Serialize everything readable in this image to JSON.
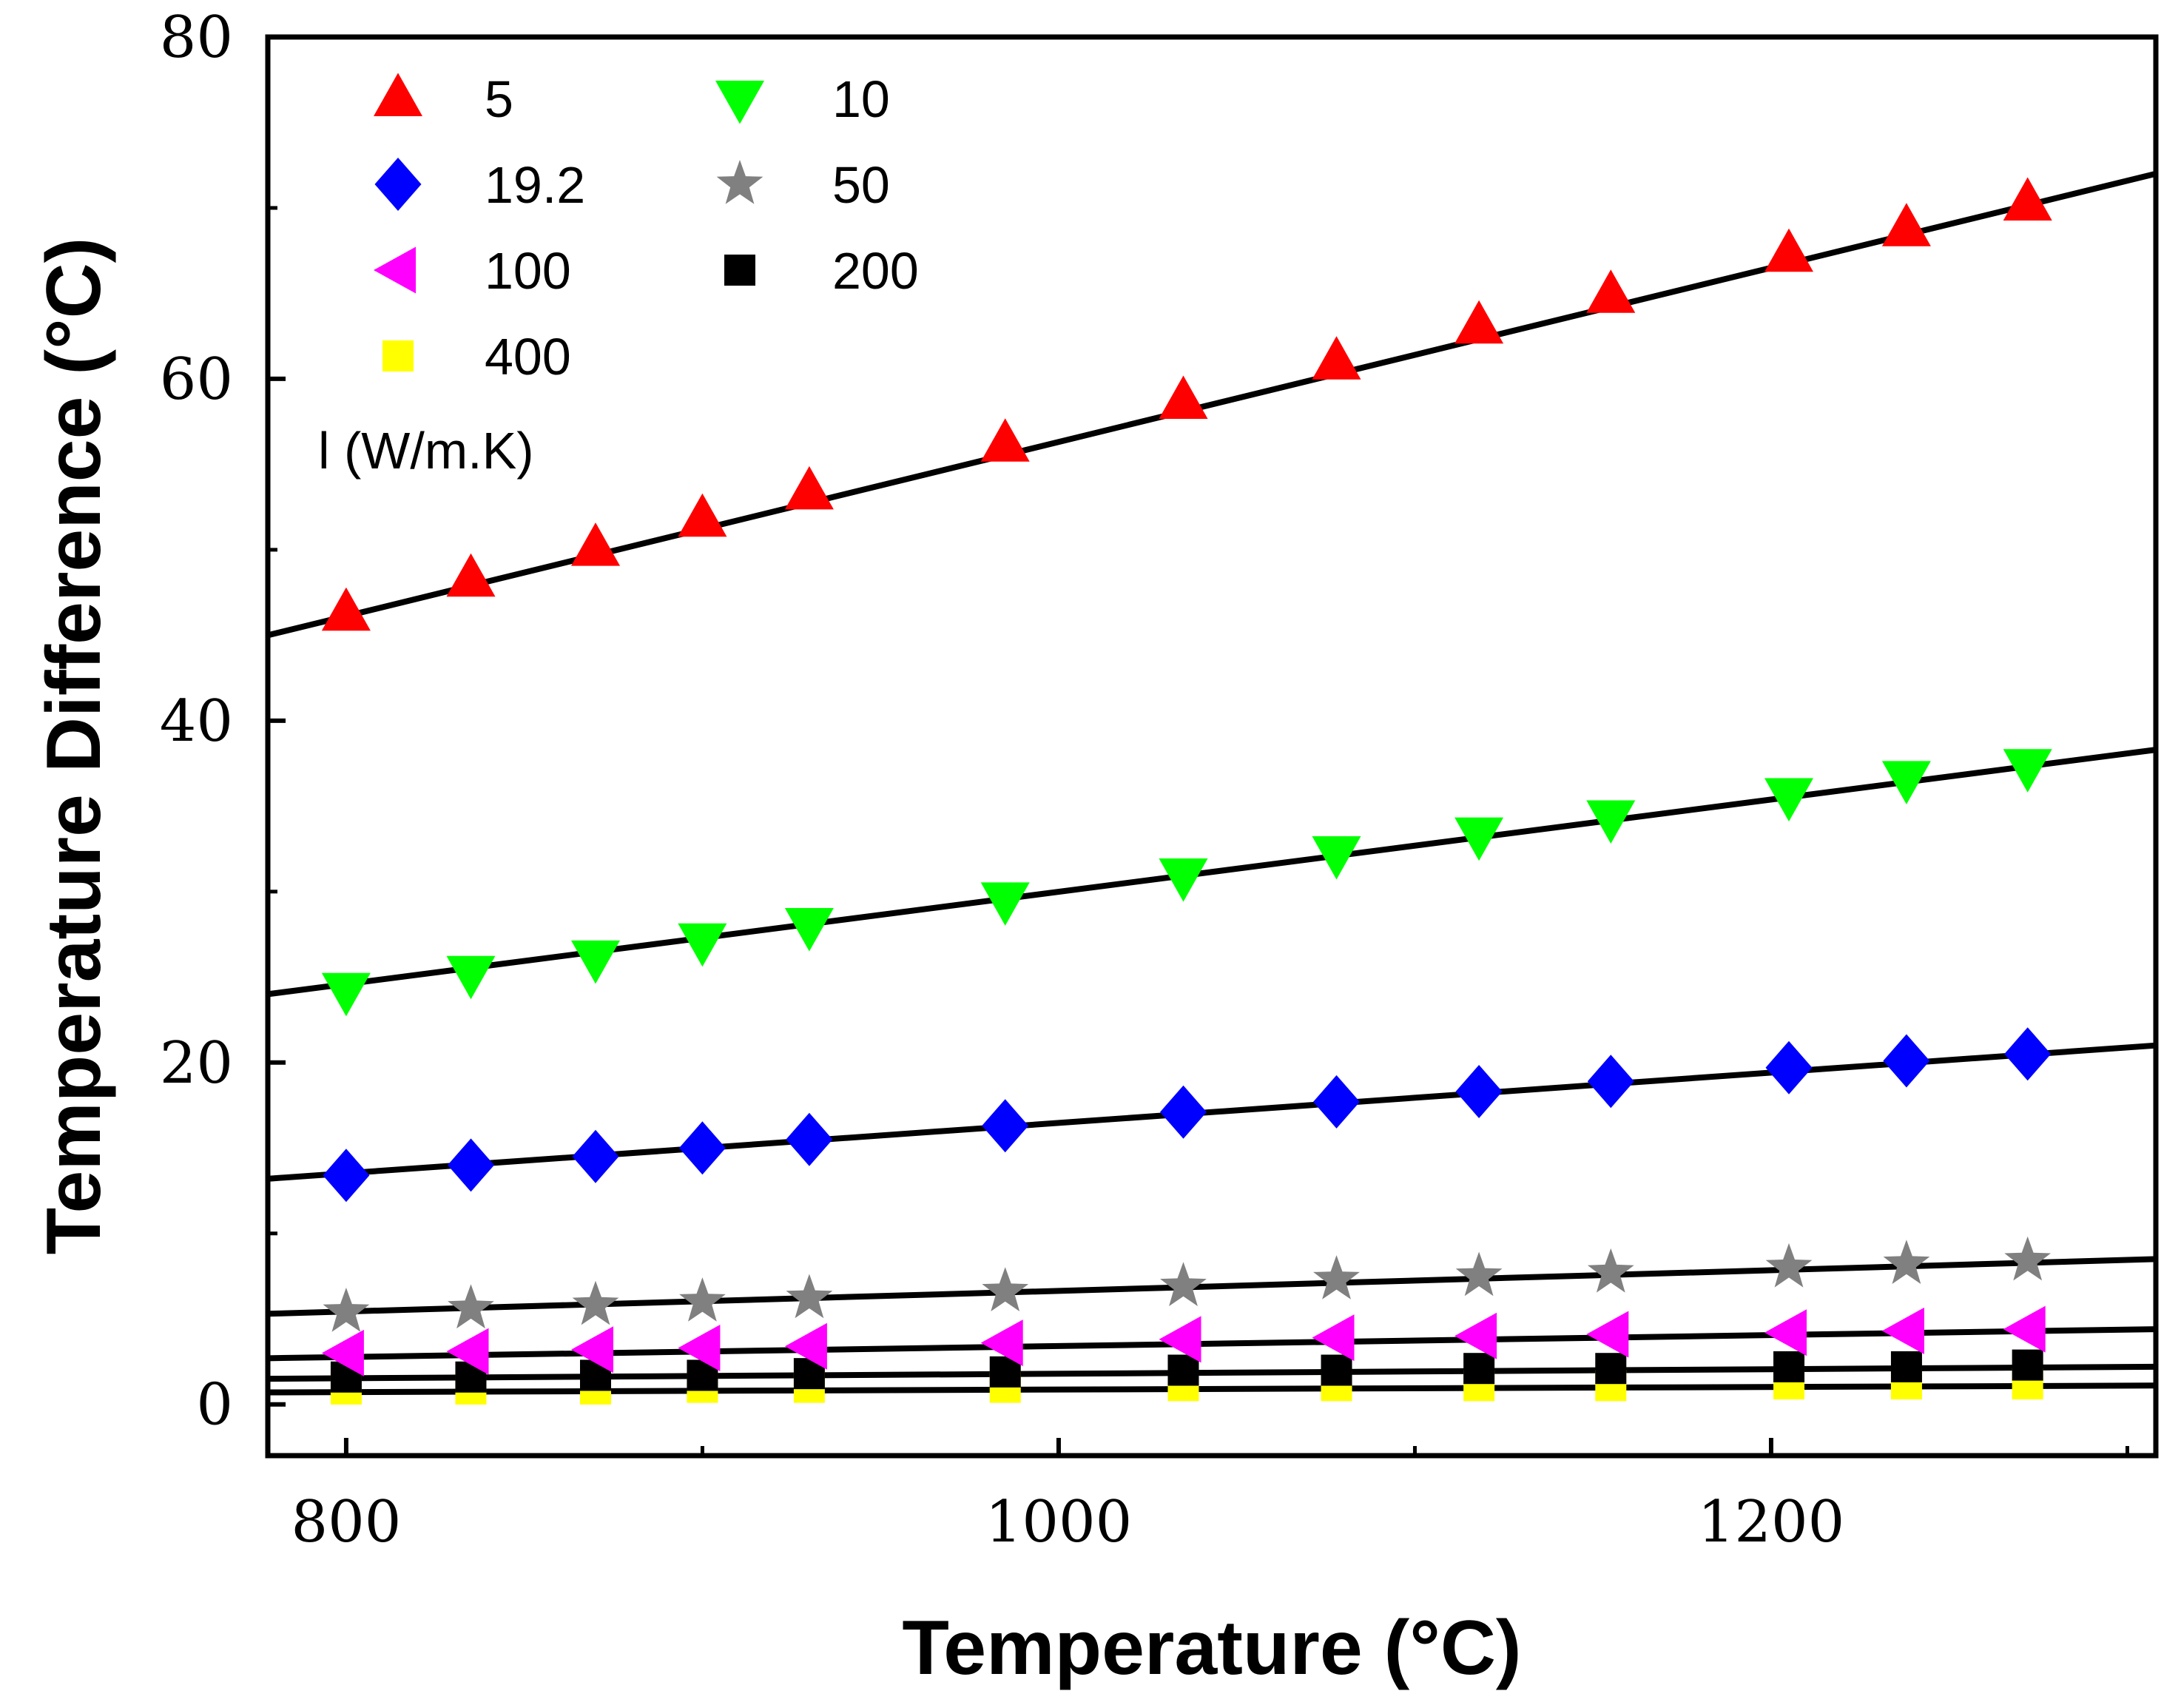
{
  "chart_data": {
    "type": "scatter",
    "title": "",
    "xlabel": "Temperature (°C)",
    "ylabel": "Temperature Difference (°C)",
    "xlim": [
      778,
      1308
    ],
    "ylim": [
      -3,
      80
    ],
    "xticks": [
      800,
      1000,
      1200
    ],
    "yticks": [
      0,
      20,
      40,
      60,
      80
    ],
    "grid": false,
    "legend_title": "l (W/m.K)",
    "legend_position": "top-left",
    "x": [
      800,
      835,
      870,
      900,
      930,
      985,
      1035,
      1078,
      1118,
      1155,
      1205,
      1238,
      1272
    ],
    "series": [
      {
        "name": "5",
        "marker": "triangle-up",
        "color": "#ff0000",
        "values": [
          46.3,
          48.3,
          50.1,
          51.8,
          53.4,
          56.2,
          58.7,
          61.0,
          63.1,
          64.9,
          67.3,
          68.8,
          70.3
        ],
        "fit": [
          45.0,
          72.0
        ]
      },
      {
        "name": "10",
        "marker": "triangle-down",
        "color": "#00ff00",
        "values": [
          24.2,
          25.2,
          26.1,
          27.1,
          28.0,
          29.5,
          30.9,
          32.2,
          33.3,
          34.3,
          35.6,
          36.6,
          37.3
        ],
        "fit": [
          24.0,
          38.3
        ]
      },
      {
        "name": "19.2",
        "marker": "diamond",
        "color": "#0000ff",
        "values": [
          13.4,
          14.0,
          14.5,
          15.0,
          15.5,
          16.3,
          17.1,
          17.7,
          18.3,
          18.9,
          19.7,
          20.1,
          20.5
        ],
        "fit": [
          13.2,
          21.0
        ]
      },
      {
        "name": "50",
        "marker": "star",
        "color": "#808080",
        "values": [
          5.4,
          5.6,
          5.8,
          6.0,
          6.2,
          6.6,
          6.9,
          7.3,
          7.5,
          7.7,
          8.0,
          8.2,
          8.4
        ],
        "fit": [
          5.3,
          8.5
        ]
      },
      {
        "name": "100",
        "marker": "triangle-left",
        "color": "#ff00ff",
        "values": [
          3.0,
          3.1,
          3.2,
          3.3,
          3.4,
          3.6,
          3.8,
          3.9,
          4.0,
          4.1,
          4.2,
          4.3,
          4.4
        ],
        "fit": [
          2.7,
          4.4
        ]
      },
      {
        "name": "200",
        "marker": "square",
        "color": "#000000",
        "values": [
          1.6,
          1.6,
          1.7,
          1.7,
          1.8,
          1.9,
          2.0,
          2.0,
          2.1,
          2.1,
          2.2,
          2.2,
          2.3
        ],
        "fit": [
          1.5,
          2.2
        ]
      },
      {
        "name": "400",
        "marker": "square",
        "color": "#ffff00",
        "values": [
          0.9,
          0.9,
          0.9,
          1.0,
          1.0,
          1.0,
          1.1,
          1.1,
          1.1,
          1.1,
          1.2,
          1.2,
          1.2
        ],
        "fit": [
          0.7,
          1.1
        ]
      }
    ]
  }
}
